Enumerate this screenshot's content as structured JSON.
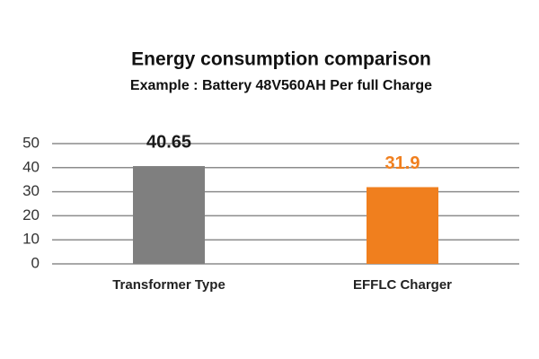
{
  "chart_data": {
    "type": "bar",
    "title": "Energy consumption comparison",
    "subtitle": "Example : Battery 48V560AH Per full Charge",
    "categories": [
      "Transformer Type",
      "EFFLC Charger"
    ],
    "values": [
      40.65,
      31.9
    ],
    "colors": [
      "#7f7f7f",
      "#f07f1e"
    ],
    "value_label_colors": [
      "#1a1a1a",
      "#f07f1e"
    ],
    "ylim": [
      0,
      50
    ],
    "yticks": [
      0,
      10,
      20,
      30,
      40,
      50
    ],
    "grid": true
  }
}
